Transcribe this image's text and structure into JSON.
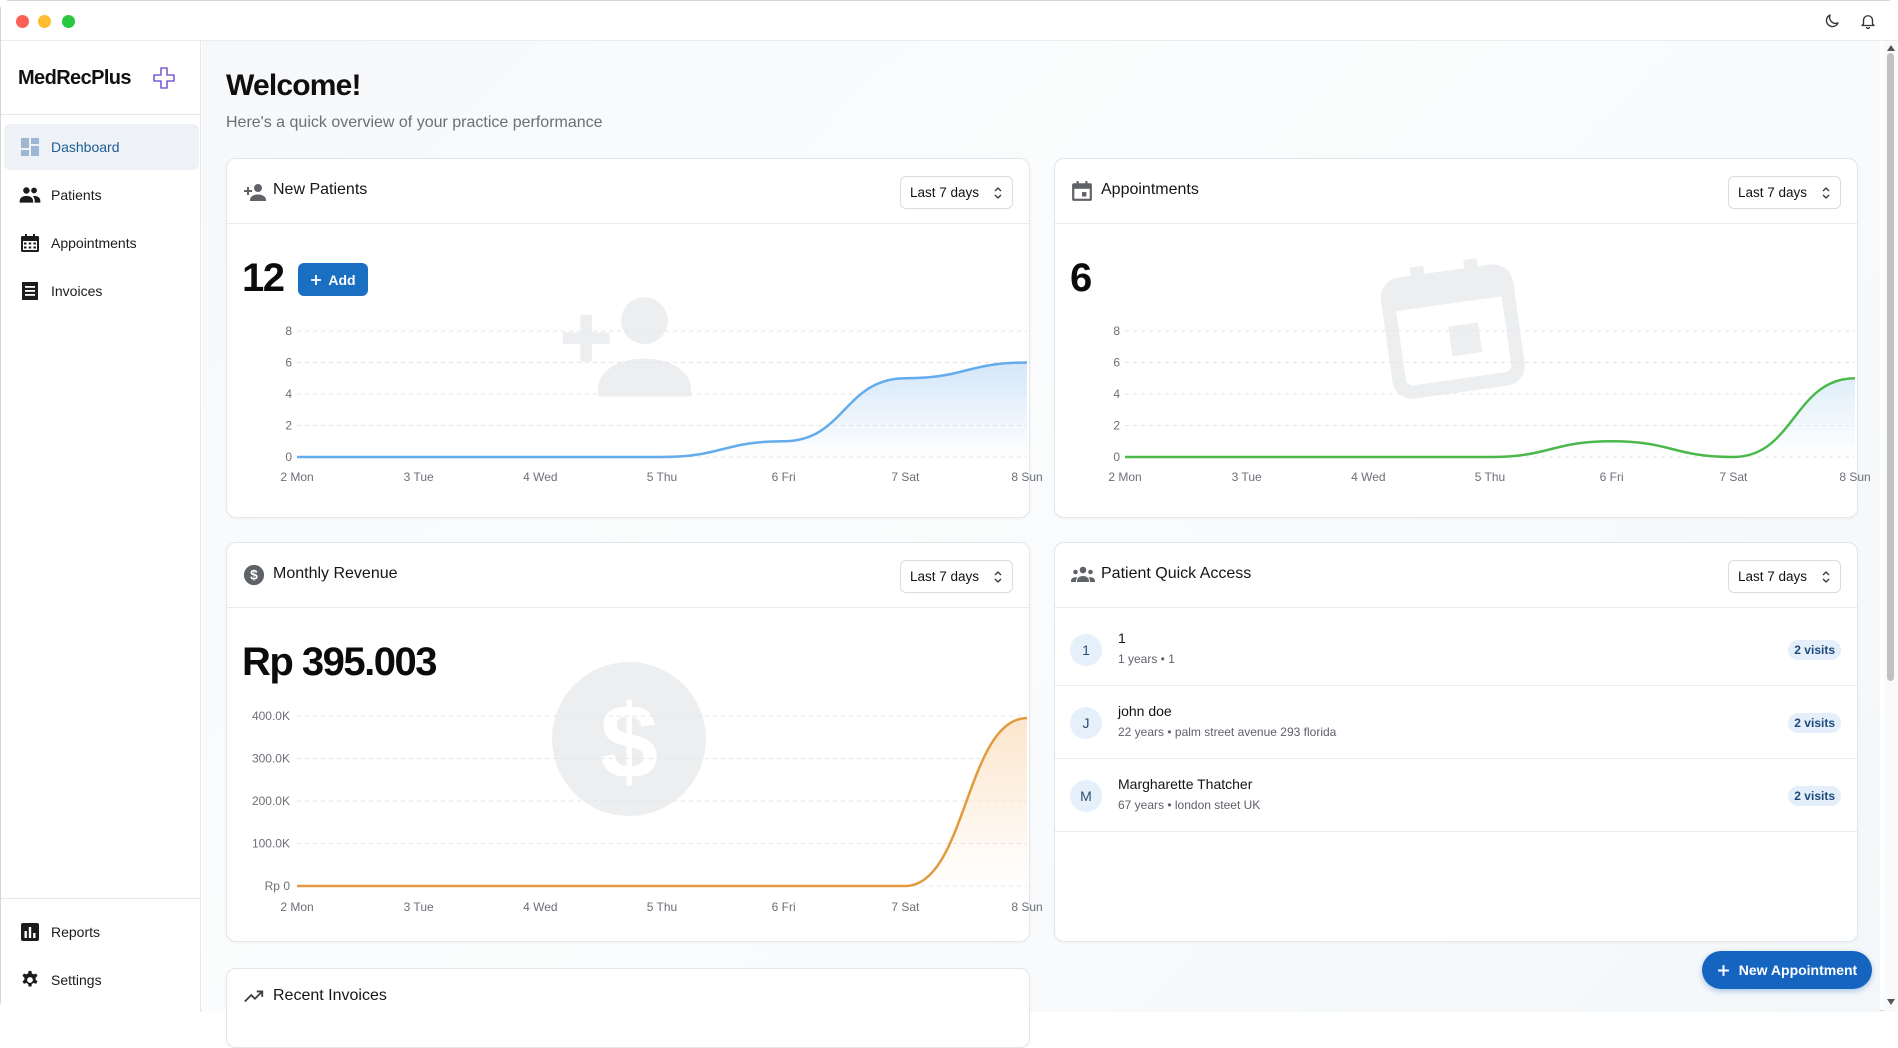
{
  "app": {
    "brand": "MedRecPlus"
  },
  "sidebar": {
    "items": [
      {
        "label": "Dashboard",
        "icon": "dashboard-icon",
        "active": true
      },
      {
        "label": "Patients",
        "icon": "people-icon"
      },
      {
        "label": "Appointments",
        "icon": "calendar-icon"
      },
      {
        "label": "Invoices",
        "icon": "invoice-icon"
      }
    ],
    "bottom": [
      {
        "label": "Reports",
        "icon": "bar-chart-icon"
      },
      {
        "label": "Settings",
        "icon": "gear-icon"
      }
    ]
  },
  "header": {
    "title": "Welcome!",
    "subtitle": "Here's a quick overview of your practice performance"
  },
  "cards": {
    "new_patients": {
      "title": "New Patients",
      "range": "Last 7 days",
      "value": "12",
      "add_label": "Add"
    },
    "appointments": {
      "title": "Appointments",
      "range": "Last 7 days",
      "value": "6"
    },
    "revenue": {
      "title": "Monthly Revenue",
      "range": "Last 7 days",
      "value": "Rp 395.003"
    },
    "quick_access": {
      "title": "Patient Quick Access",
      "range": "Last 7 days"
    },
    "recent_invoices": {
      "title": "Recent Invoices"
    }
  },
  "patients": [
    {
      "initial": "1",
      "name": "1",
      "meta": "1 years • 1",
      "visits": "2 visits"
    },
    {
      "initial": "J",
      "name": "john doe",
      "meta": "22 years • palm street avenue 293 florida",
      "visits": "2 visits"
    },
    {
      "initial": "M",
      "name": "Margharette Thatcher",
      "meta": "67 years • london steet UK",
      "visits": "2 visits"
    }
  ],
  "fab": {
    "label": "New Appointment"
  },
  "colors": {
    "accent": "#1b6fc2",
    "patients_line": "#64acec",
    "appointments_line": "#4cb84c",
    "revenue_line": "#e39a3e"
  },
  "chart_data": [
    {
      "type": "area",
      "categories": [
        "2 Mon",
        "3 Tue",
        "4 Wed",
        "5 Thu",
        "6 Fri",
        "7 Sat",
        "8 Sun"
      ],
      "values": [
        0,
        0,
        0,
        0,
        1,
        5,
        6
      ],
      "yticks": [
        "0",
        "2",
        "4",
        "6",
        "8"
      ],
      "ylim": [
        0,
        8
      ],
      "grid": true
    },
    {
      "type": "area",
      "categories": [
        "2 Mon",
        "3 Tue",
        "4 Wed",
        "5 Thu",
        "6 Fri",
        "7 Sat",
        "8 Sun"
      ],
      "values": [
        0,
        0,
        0,
        0,
        1,
        0,
        5
      ],
      "yticks": [
        "0",
        "2",
        "4",
        "6",
        "8"
      ],
      "ylim": [
        0,
        8
      ],
      "grid": true
    },
    {
      "type": "area",
      "categories": [
        "2 Mon",
        "3 Tue",
        "4 Wed",
        "5 Thu",
        "6 Fri",
        "7 Sat",
        "8 Sun"
      ],
      "values": [
        0,
        0,
        0,
        0,
        0,
        0,
        395003
      ],
      "yticks": [
        "Rp 0",
        "100.0K",
        "200.0K",
        "300.0K",
        "400.0K"
      ],
      "ylim": [
        0,
        400000
      ],
      "grid": true
    }
  ]
}
